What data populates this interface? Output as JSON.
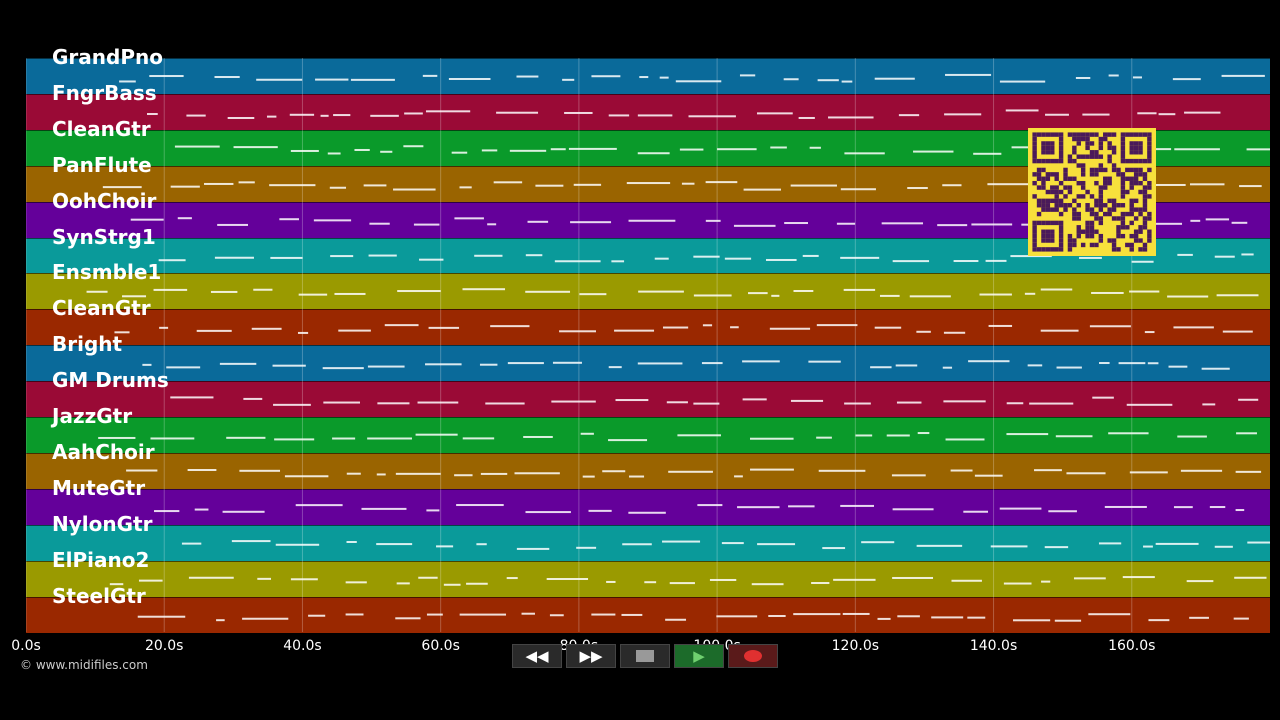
{
  "tracks": [
    {
      "name": "GrandPno",
      "color": "#0a6a9a"
    },
    {
      "name": "FngrBass",
      "color": "#9a0a36"
    },
    {
      "name": "CleanGtr",
      "color": "#0a9a2a"
    },
    {
      "name": "PanFlute",
      "color": "#9a6400"
    },
    {
      "name": "OohChoir",
      "color": "#64009a"
    },
    {
      "name": "SynStrg1",
      "color": "#0a9a9a"
    },
    {
      "name": "Ensmble1",
      "color": "#9a9a00"
    },
    {
      "name": "CleanGtr",
      "color": "#9a2800"
    },
    {
      "name": "Bright",
      "color": "#0a6a9a"
    },
    {
      "name": "GM Drums",
      "color": "#9a0a36"
    },
    {
      "name": "JazzGtr",
      "color": "#0a9a2a"
    },
    {
      "name": "AahChoir",
      "color": "#9a6400"
    },
    {
      "name": "MuteGtr",
      "color": "#64009a"
    },
    {
      "name": "NylonGtr",
      "color": "#0a9a9a"
    },
    {
      "name": "ElPiano2",
      "color": "#9a9a00"
    },
    {
      "name": "SteelGtr",
      "color": "#9a2800"
    }
  ],
  "timeline": {
    "max_seconds": 180,
    "tick_labels": [
      "0.0s",
      "20.0s",
      "40.0s",
      "60.0s",
      "80.0s",
      "100.0s",
      "120.0s",
      "140.0s",
      "160.0s"
    ],
    "tick_values": [
      0,
      20,
      40,
      60,
      80,
      100,
      120,
      140,
      160
    ]
  },
  "transport": {
    "rewind_icon": "rewind-icon",
    "fast_forward_icon": "fast-forward-icon",
    "stop_icon": "stop-icon",
    "play_icon": "play-icon",
    "record_icon": "record-icon"
  },
  "copyright": "© www.midifiles.com"
}
